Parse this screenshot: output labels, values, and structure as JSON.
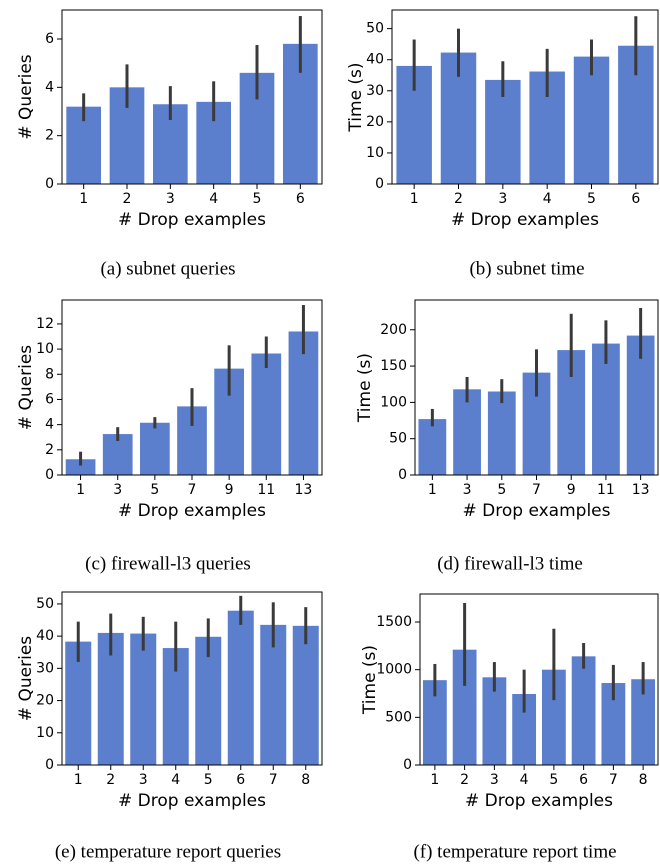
{
  "chart_data": [
    {
      "type": "bar",
      "caption": "(a) subnet queries",
      "xlabel": "# Drop examples",
      "ylabel": "# Queries",
      "categories": [
        "1",
        "2",
        "3",
        "4",
        "5",
        "6"
      ],
      "values": [
        3.2,
        4.0,
        3.3,
        3.4,
        4.6,
        5.8
      ],
      "ci_low": [
        2.6,
        3.15,
        2.65,
        2.6,
        3.5,
        4.6
      ],
      "ci_high": [
        3.75,
        4.95,
        4.05,
        4.25,
        5.75,
        6.95
      ],
      "color": "#5b7fcc",
      "error_color": "#3a3a3a",
      "ylim": [
        0,
        7.2
      ],
      "yticks": [
        0,
        2,
        4,
        6
      ]
    },
    {
      "type": "bar",
      "caption": "(b) subnet time",
      "xlabel": "# Drop examples",
      "ylabel": "Time (s)",
      "categories": [
        "1",
        "2",
        "3",
        "4",
        "5",
        "6"
      ],
      "values": [
        38,
        42.3,
        33.5,
        36.2,
        41,
        44.5
      ],
      "ci_low": [
        30,
        34.5,
        28,
        28,
        35,
        35
      ],
      "ci_high": [
        46.5,
        50,
        39.5,
        43.5,
        46.5,
        54
      ],
      "color": "#5b7fcc",
      "error_color": "#3a3a3a",
      "ylim": [
        0,
        56
      ],
      "yticks": [
        0,
        10,
        20,
        30,
        40,
        50
      ]
    },
    {
      "type": "bar",
      "caption": "(c) firewall-l3 queries",
      "xlabel": "# Drop examples",
      "ylabel": "# Queries",
      "categories": [
        "1",
        "3",
        "5",
        "7",
        "9",
        "11",
        "13"
      ],
      "values": [
        1.25,
        3.25,
        4.15,
        5.45,
        8.45,
        9.65,
        11.4
      ],
      "ci_low": [
        0.75,
        2.7,
        3.7,
        3.9,
        6.3,
        8.5,
        9.6
      ],
      "ci_high": [
        1.85,
        3.8,
        4.6,
        6.9,
        10.3,
        11.0,
        13.5
      ],
      "color": "#5b7fcc",
      "error_color": "#3a3a3a",
      "ylim": [
        0,
        13.9
      ],
      "yticks": [
        0,
        2,
        4,
        6,
        8,
        10,
        12
      ]
    },
    {
      "type": "bar",
      "caption": "(d) firewall-l3 time",
      "xlabel": "# Drop examples",
      "ylabel": "Time (s)",
      "categories": [
        "1",
        "3",
        "5",
        "7",
        "9",
        "11",
        "13"
      ],
      "values": [
        77,
        118,
        115,
        141,
        172,
        181,
        192
      ],
      "ci_low": [
        67,
        100,
        99,
        108,
        135,
        153,
        160
      ],
      "ci_high": [
        91,
        135,
        132,
        173,
        222,
        213,
        230
      ],
      "color": "#5b7fcc",
      "error_color": "#3a3a3a",
      "ylim": [
        0,
        241
      ],
      "yticks": [
        0,
        50,
        100,
        150,
        200
      ]
    },
    {
      "type": "bar",
      "caption": "(e) temperature report queries",
      "xlabel": "# Drop examples",
      "ylabel": "# Queries",
      "categories": [
        "1",
        "2",
        "3",
        "4",
        "5",
        "6",
        "7",
        "8"
      ],
      "values": [
        38.3,
        41,
        40.8,
        36.3,
        39.8,
        47.9,
        43.5,
        43.2
      ],
      "ci_low": [
        32,
        34,
        35.5,
        29,
        33.5,
        43.5,
        36.5,
        37.5
      ],
      "ci_high": [
        44.5,
        47,
        46,
        44.5,
        45.5,
        52.5,
        50.5,
        49
      ],
      "color": "#5b7fcc",
      "error_color": "#3a3a3a",
      "ylim": [
        0,
        53.7
      ],
      "yticks": [
        0,
        10,
        20,
        30,
        40,
        50
      ]
    },
    {
      "type": "bar",
      "caption": "(f) temperature report time",
      "xlabel": "# Drop examples",
      "ylabel": "Time (s)",
      "categories": [
        "1",
        "2",
        "3",
        "4",
        "5",
        "6",
        "7",
        "8"
      ],
      "values": [
        890,
        1210,
        920,
        745,
        1000,
        1140,
        860,
        900
      ],
      "ci_low": [
        720,
        830,
        770,
        550,
        680,
        1010,
        680,
        740
      ],
      "ci_high": [
        1060,
        1700,
        1080,
        1000,
        1430,
        1280,
        1050,
        1080
      ],
      "color": "#5b7fcc",
      "error_color": "#3a3a3a",
      "ylim": [
        0,
        1794
      ],
      "yticks": [
        0,
        500,
        1000,
        1500
      ]
    }
  ]
}
